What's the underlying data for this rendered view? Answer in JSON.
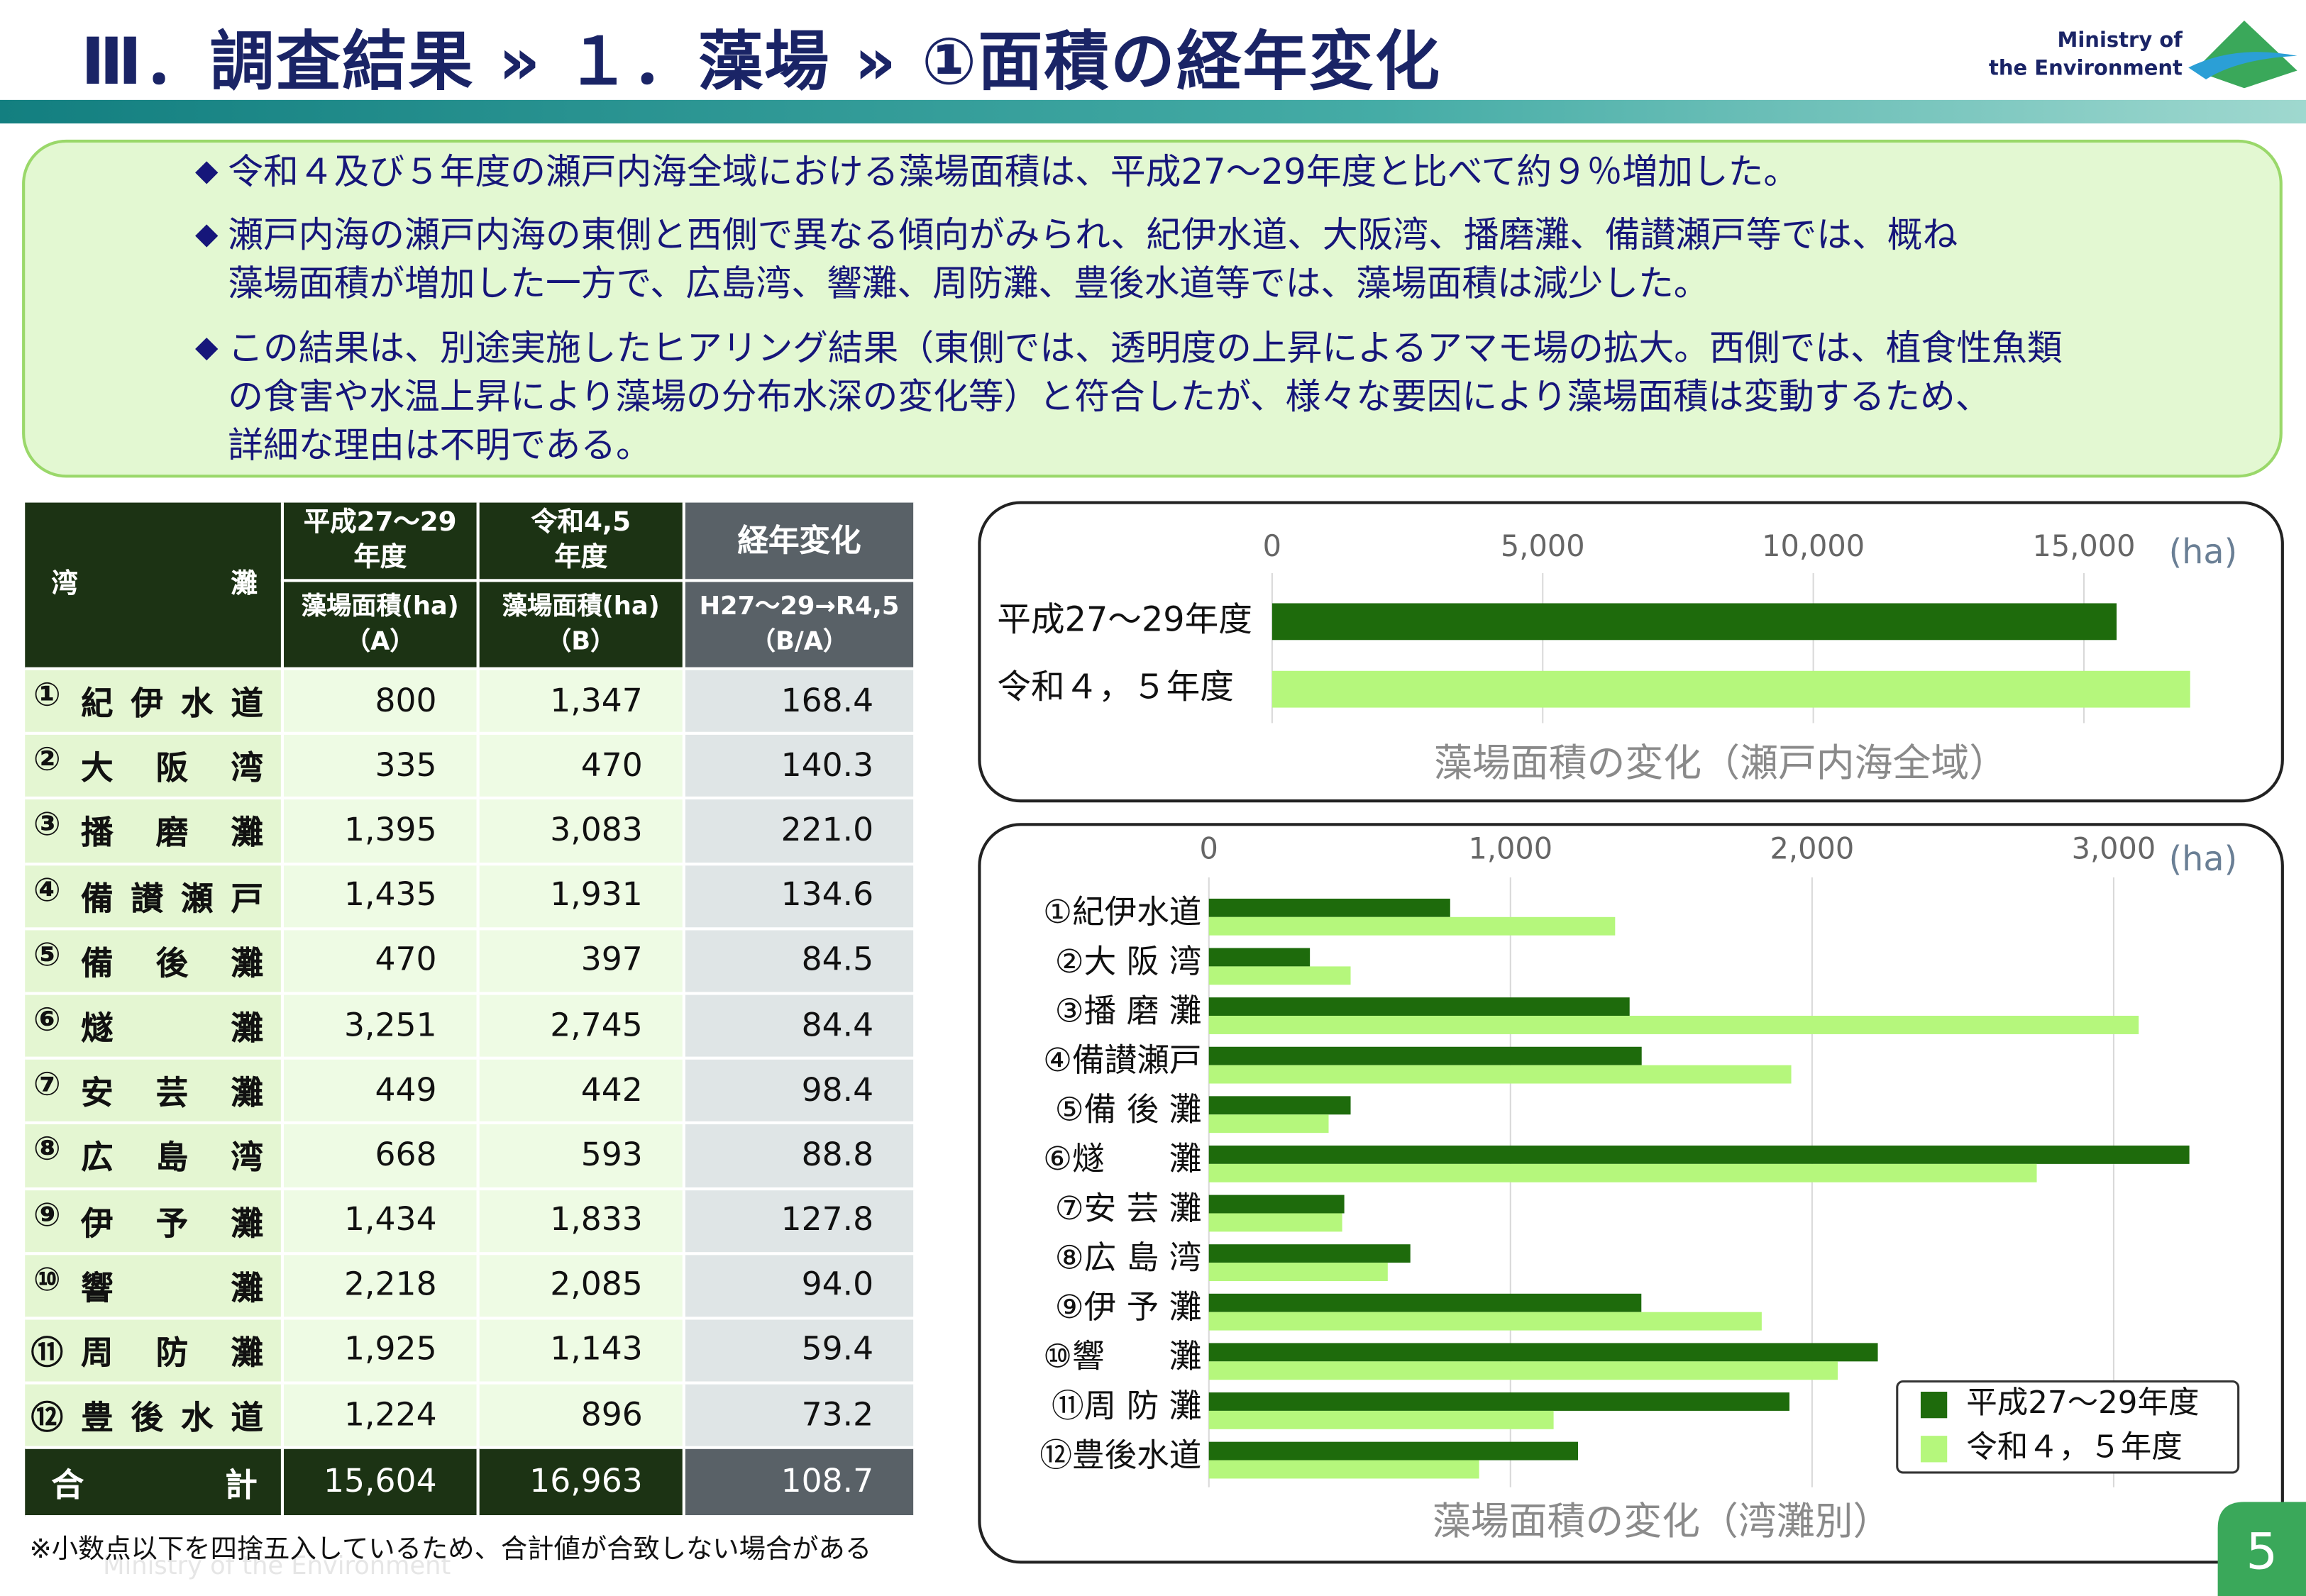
{
  "header": {
    "title": "Ⅲ．調査結果 » １．藻場 » ①面積の経年変化",
    "logo": [
      "Ministry of",
      "the Environment"
    ],
    "page_number": "5",
    "watermark": "Ministry of the Environment"
  },
  "summary": [
    [
      "令和４及び５年度の瀬戸内海全域における藻場面積は、平成27～29年度と比べて約９％増加した。"
    ],
    [
      "瀬戸内海の瀬戸内海の東側と西側で異なる傾向がみられ、紀伊水道、大阪湾、播磨灘、備讃瀬戸等では、概ね",
      "藻場面積が増加した一方で、広島湾、響灘、周防灘、豊後水道等では、藻場面積は減少した。"
    ],
    [
      "この結果は、別途実施したヒアリング結果（東側では、透明度の上昇によるアマモ場の拡大。西側では、植食性魚類",
      "の食害や水温上昇により藻場の分布水深の変化等）と符合したが、様々な要因により藻場面積は変動するため、",
      "詳細な理由は不明である。"
    ]
  ],
  "table": {
    "header": [
      [
        "湾灘",
        "平成27～29\n年度",
        "令和4,5\n年度",
        "経年変化"
      ],
      [
        "藻場面積(ha)\n（A）",
        "藻場面積(ha)\n（B）",
        "H27～29→R4,5\n（B/A）"
      ]
    ],
    "rows": [
      [
        "①",
        "紀伊水道",
        "800",
        "1,347",
        "168.4"
      ],
      [
        "②",
        "大阪湾",
        "335",
        "470",
        "140.3"
      ],
      [
        "③",
        "播磨灘",
        "1,395",
        "3,083",
        "221.0"
      ],
      [
        "④",
        "備讃瀬戸",
        "1,435",
        "1,931",
        "134.6"
      ],
      [
        "⑤",
        "備後灘",
        "470",
        "397",
        "84.5"
      ],
      [
        "⑥",
        "燧灘",
        "3,251",
        "2,745",
        "84.4"
      ],
      [
        "⑦",
        "安芸灘",
        "449",
        "442",
        "98.4"
      ],
      [
        "⑧",
        "広島湾",
        "668",
        "593",
        "88.8"
      ],
      [
        "⑨",
        "伊予灘",
        "1,434",
        "1,833",
        "127.8"
      ],
      [
        "⑩",
        "響灘",
        "2,218",
        "2,085",
        "94.0"
      ],
      [
        "⑪",
        "周防灘",
        "1,925",
        "1,143",
        "59.4"
      ],
      [
        "⑫",
        "豊後水道",
        "1,224",
        "896",
        "73.2"
      ]
    ],
    "total": [
      "合計",
      "15,604",
      "16,963",
      "108.7"
    ],
    "footnote": "※小数点以下を四捨五入しているため、合計値が合致しない場合がある"
  },
  "chart_data": [
    {
      "type": "bar",
      "horizontal": true,
      "title": "藻場面積の変化（瀬戸内海全域）",
      "xlabel": "(ha)",
      "categories": [
        "平成27～29年度",
        "令和４，５年度"
      ],
      "values": [
        15604,
        16963
      ],
      "colors": [
        "#1e6b0c",
        "#b5f77c"
      ],
      "xlim": [
        0,
        17500
      ],
      "xticks": [
        0,
        {
          "value": 5000,
          "label": "5,000"
        },
        {
          "value": 10000,
          "label": "10,000"
        },
        {
          "value": 15000,
          "label": "15,000"
        }
      ],
      "grid": true
    },
    {
      "type": "bar",
      "horizontal": true,
      "title": "藻場面積の変化（湾灘別）",
      "xlabel": "(ha)",
      "categories": [
        "①紀伊水道",
        "②大 阪 湾",
        "③播 磨 灘",
        "④備讃瀬戸",
        "⑤備 後 灘",
        "⑥燧　　灘",
        "⑦安 芸 灘",
        "⑧広 島 湾",
        "⑨伊 予 灘",
        "⑩響　　灘",
        "⑪周 防 灘",
        "⑫豊後水道"
      ],
      "series": [
        {
          "name": "平成27～29年度",
          "color": "#1e6b0c",
          "values": [
            800,
            335,
            1395,
            1435,
            470,
            3251,
            449,
            668,
            1434,
            2218,
            1925,
            1224
          ]
        },
        {
          "name": "令和４，５年度",
          "color": "#b5f77c",
          "values": [
            1347,
            470,
            3083,
            1931,
            397,
            2745,
            442,
            593,
            1833,
            2085,
            1143,
            896
          ]
        }
      ],
      "xlim": [
        0,
        3350
      ],
      "xticks": [
        0,
        {
          "value": 1000,
          "label": "1,000"
        },
        {
          "value": 2000,
          "label": "2,000"
        },
        {
          "value": 3000,
          "label": "3,000"
        }
      ],
      "grid": true,
      "legend": "lower-right"
    }
  ]
}
